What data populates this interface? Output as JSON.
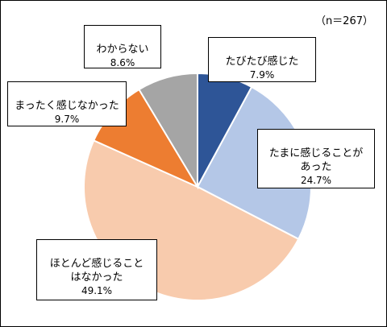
{
  "chart_data": {
    "type": "pie",
    "sample_label": "（n＝267）",
    "start_angle_deg": 0,
    "direction": "clockwise",
    "slices": [
      {
        "label": "たびたび感じた",
        "value": 7.9,
        "value_label": "7.9%",
        "color": "#2e5597"
      },
      {
        "label": "たまに感じることが\nあった",
        "value": 24.7,
        "value_label": "24.7%",
        "color": "#b4c7e7"
      },
      {
        "label": "ほとんど感じること\nはなかった",
        "value": 49.1,
        "value_label": "49.1%",
        "color": "#f8cbad"
      },
      {
        "label": "まったく感じなかった",
        "value": 9.7,
        "value_label": "9.7%",
        "color": "#ed7d31"
      },
      {
        "label": "わからない",
        "value": 8.6,
        "value_label": "8.6%",
        "color": "#a5a5a5"
      }
    ]
  }
}
